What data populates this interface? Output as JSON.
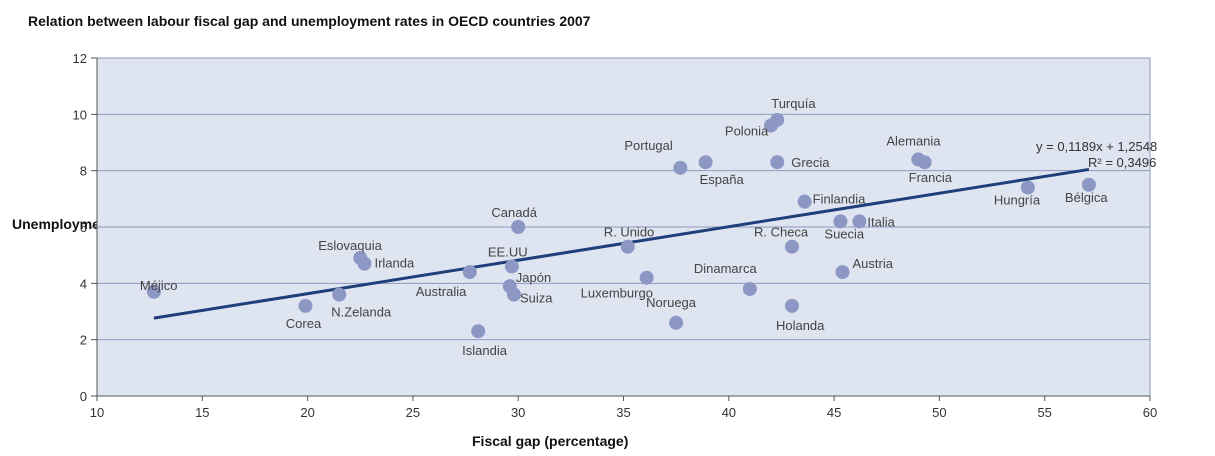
{
  "chart_data": {
    "type": "scatter",
    "title": "Relation between labour fiscal gap and unemployment rates in OECD countries 2007",
    "xlabel": "Fiscal gap (percentage)",
    "ylabel": "Unemployment rates",
    "xlim": [
      10,
      60
    ],
    "ylim": [
      0,
      12
    ],
    "xticks": [
      10,
      15,
      20,
      25,
      30,
      35,
      40,
      45,
      50,
      55,
      60
    ],
    "yticks": [
      0,
      2,
      4,
      6,
      8,
      10,
      12
    ],
    "grid": "horizontal",
    "colors": {
      "plot_bg": "#dfe4f1",
      "grid": "#8d99bd",
      "point": "#8c97c4",
      "trend": "#1f3f7a"
    },
    "points": [
      {
        "label": "Méjico",
        "x": 12.7,
        "y": 3.7
      },
      {
        "label": "Corea",
        "x": 19.9,
        "y": 3.2
      },
      {
        "label": "N.Zelanda",
        "x": 21.5,
        "y": 3.6
      },
      {
        "label": "Eslovaquia",
        "x": 22.5,
        "y": 4.9
      },
      {
        "label": "Irlanda",
        "x": 22.7,
        "y": 4.7
      },
      {
        "label": "Australia",
        "x": 27.7,
        "y": 4.4
      },
      {
        "label": "Islandia",
        "x": 28.1,
        "y": 2.3
      },
      {
        "label": "Japón",
        "x": 29.6,
        "y": 3.9
      },
      {
        "label": "Suiza",
        "x": 29.8,
        "y": 3.6
      },
      {
        "label": "EE.UU",
        "x": 29.7,
        "y": 4.6
      },
      {
        "label": "Canadá",
        "x": 30.0,
        "y": 6.0
      },
      {
        "label": "R. Unido",
        "x": 35.2,
        "y": 5.3
      },
      {
        "label": "Luxemburgo",
        "x": 36.1,
        "y": 4.2
      },
      {
        "label": "Portugal",
        "x": 37.7,
        "y": 8.1
      },
      {
        "label": "Noruega",
        "x": 37.5,
        "y": 2.6
      },
      {
        "label": "España",
        "x": 38.9,
        "y": 8.3
      },
      {
        "label": "Dinamarca",
        "x": 41.0,
        "y": 3.8
      },
      {
        "label": "Polonia",
        "x": 42.0,
        "y": 9.6
      },
      {
        "label": "Turquía",
        "x": 42.3,
        "y": 9.8
      },
      {
        "label": "Grecia",
        "x": 42.3,
        "y": 8.3
      },
      {
        "label": "R. Checa",
        "x": 43.0,
        "y": 5.3
      },
      {
        "label": "Holanda",
        "x": 43.0,
        "y": 3.2
      },
      {
        "label": "Finlandia",
        "x": 43.6,
        "y": 6.9
      },
      {
        "label": "Suecia",
        "x": 45.3,
        "y": 6.2
      },
      {
        "label": "Austria",
        "x": 45.4,
        "y": 4.4
      },
      {
        "label": "Italia",
        "x": 46.2,
        "y": 6.2
      },
      {
        "label": "Alemania",
        "x": 49.0,
        "y": 8.4
      },
      {
        "label": "Francia",
        "x": 49.3,
        "y": 8.3
      },
      {
        "label": "Hungría",
        "x": 54.2,
        "y": 7.4
      },
      {
        "label": "Bélgica",
        "x": 57.1,
        "y": 7.5
      }
    ],
    "trendline": {
      "slope": 0.1189,
      "intercept": 1.2548,
      "x_range": [
        12.7,
        57.1
      ],
      "equation": "y = 0,1189x + 1,2548",
      "r2": "R² = 0,3496"
    }
  }
}
